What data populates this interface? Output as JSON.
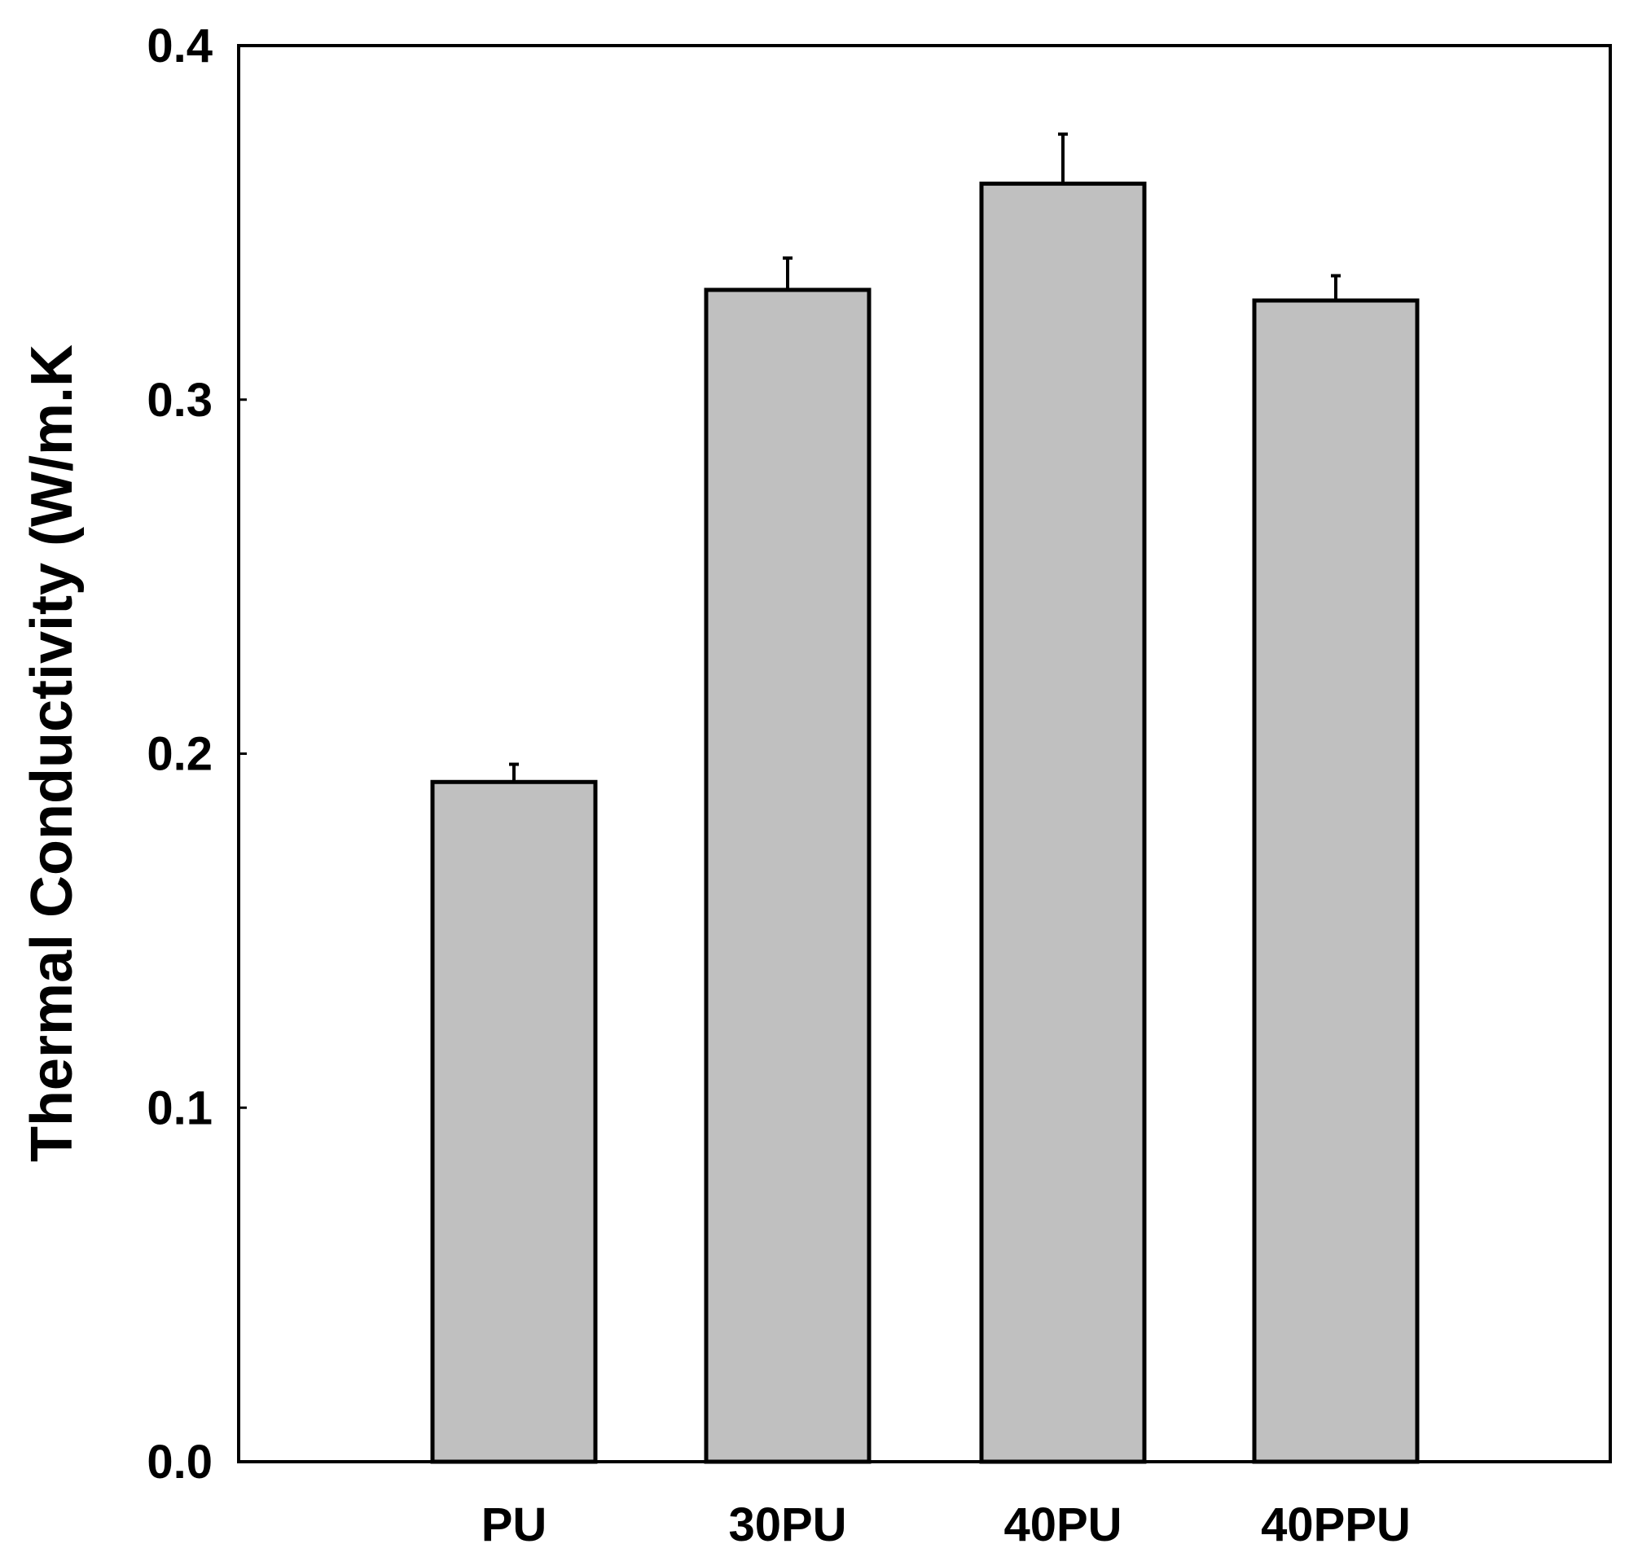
{
  "chart_data": {
    "type": "bar",
    "title": "",
    "xlabel": "",
    "ylabel": "Thermal Conductivity (W/m.K",
    "categories": [
      "PU",
      "30PU",
      "40PU",
      "40PPU"
    ],
    "values": [
      0.192,
      0.331,
      0.361,
      0.328
    ],
    "error_upper": [
      0.197,
      0.34,
      0.375,
      0.335
    ],
    "ylim": [
      0.0,
      0.4
    ],
    "yticks": [
      "0.0",
      "0.1",
      "0.2",
      "0.3",
      "0.4"
    ],
    "grid": false,
    "legend": "none",
    "colors": {
      "bar_fill": "#c0c0c0",
      "bar_stroke": "#000000"
    }
  }
}
